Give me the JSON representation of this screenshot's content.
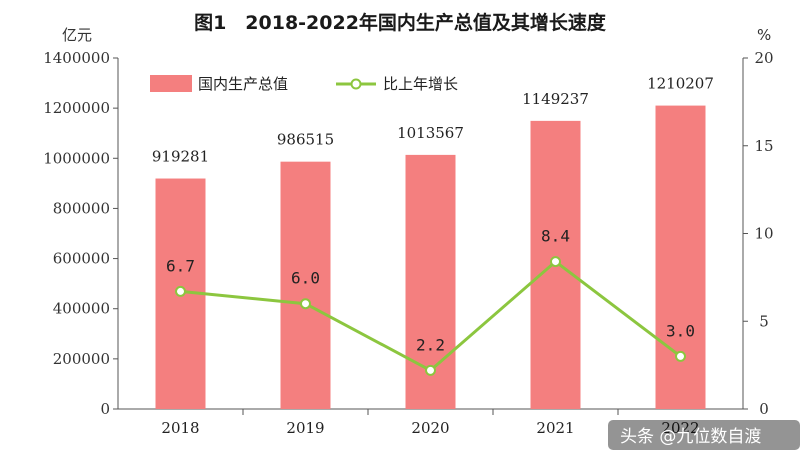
{
  "title": "图1　2018-2022年国内生产总值及其增长速度",
  "watermark": "头条 @九位数自渡",
  "colors": {
    "bar": "#f47f7f",
    "line": "#8cc63f",
    "marker_fill": "#ffffff",
    "axis": "#555555"
  },
  "chart_data": {
    "type": "bar",
    "categories": [
      "2018",
      "2019",
      "2020",
      "2021",
      "2022"
    ],
    "series": [
      {
        "name": "国内生产总值",
        "type": "bar",
        "axis": "left",
        "values": [
          919281,
          986515,
          1013567,
          1149237,
          1210207
        ],
        "labels": [
          "919281",
          "986515",
          "1013567",
          "1149237",
          "1210207"
        ]
      },
      {
        "name": "比上年增长",
        "type": "line",
        "axis": "right",
        "values": [
          6.7,
          6.0,
          2.2,
          8.4,
          3.0
        ],
        "labels": [
          "6.7",
          "6.0",
          "2.2",
          "8.4",
          "3.0"
        ]
      }
    ],
    "y_left": {
      "unit": "亿元",
      "range": [
        0,
        1400000
      ],
      "ticks": [
        "0",
        "200000",
        "400000",
        "600000",
        "800000",
        "1000000",
        "1200000",
        "1400000"
      ]
    },
    "y_right": {
      "unit": "%",
      "range": [
        0,
        20
      ],
      "ticks": [
        "0",
        "5",
        "10",
        "15",
        "20"
      ]
    },
    "legend_position": "top-left",
    "grid": false
  }
}
